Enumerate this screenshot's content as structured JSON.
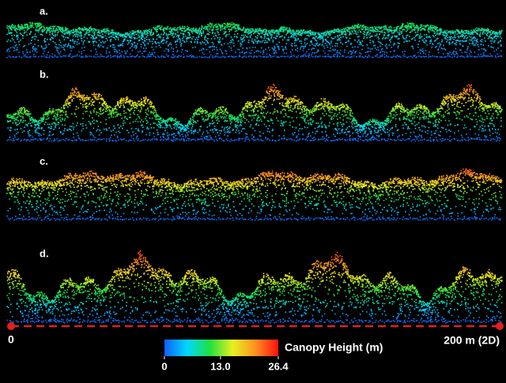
{
  "panels": [
    {
      "label": "a."
    },
    {
      "label": "b."
    },
    {
      "label": "c."
    },
    {
      "label": "d."
    }
  ],
  "scale_bar": {
    "start": "0",
    "end": "200 m (2D)"
  },
  "colorbar": {
    "title": "Canopy Height (m)",
    "ticks": [
      0,
      {
        "value": 13,
        "label": "13.0"
      },
      26.4
    ]
  }
}
